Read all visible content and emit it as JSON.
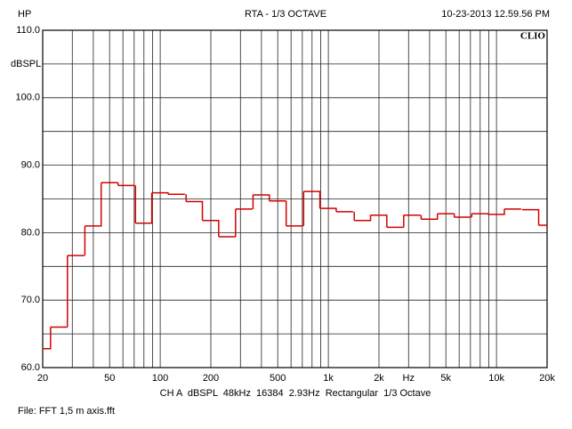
{
  "header": {
    "left": "HP",
    "center": "RTA - 1/3 OCTAVE",
    "right": "10-23-2013 12.59.56 PM"
  },
  "chart_data": {
    "type": "line",
    "drawstyle": "steps-mid",
    "brand": "CLIO",
    "ylabel": "dBSPL",
    "x": [
      20,
      25,
      31.5,
      40,
      50,
      63,
      80,
      100,
      125,
      160,
      200,
      250,
      315,
      400,
      500,
      630,
      800,
      1000,
      1250,
      1600,
      2000,
      2500,
      3150,
      4000,
      5000,
      6300,
      8000,
      10000,
      12500,
      16000,
      20000
    ],
    "series": [
      {
        "name": "CH A",
        "color": "#d40000",
        "values": [
          62.8,
          66.0,
          76.6,
          81.0,
          87.4,
          87.0,
          81.4,
          85.9,
          85.7,
          84.6,
          81.8,
          79.4,
          83.5,
          85.6,
          84.7,
          81.0,
          86.1,
          83.6,
          83.1,
          81.8,
          82.6,
          80.8,
          82.6,
          82.0,
          82.8,
          82.3,
          82.8,
          82.7,
          83.5,
          83.4,
          81.1
        ]
      }
    ],
    "xscale": "log",
    "xlim": [
      20,
      20000
    ],
    "xticks": [
      20,
      50,
      100,
      200,
      500,
      {
        "value": 1000,
        "label": "1k"
      },
      {
        "value": 2000,
        "label": "2k"
      },
      {
        "value": 3000,
        "label": "Hz"
      },
      {
        "value": 5000,
        "label": "5k"
      },
      {
        "value": 10000,
        "label": "10k"
      },
      {
        "value": 20000,
        "label": "20k"
      }
    ],
    "xminor": [
      30,
      40,
      60,
      70,
      80,
      90,
      300,
      400,
      600,
      700,
      800,
      900,
      4000,
      6000,
      7000,
      8000,
      9000
    ],
    "ylim": [
      60,
      110
    ],
    "yticks": [
      {
        "value": 60,
        "label": "60.0"
      },
      {
        "value": 70,
        "label": "70.0"
      },
      {
        "value": 80,
        "label": "80.0"
      },
      {
        "value": 90,
        "label": "90.0"
      },
      {
        "value": 100,
        "label": "100.0"
      },
      {
        "value": 110,
        "label": "110.0"
      }
    ],
    "yminor": [
      65,
      75,
      85,
      95,
      105
    ],
    "grid": true
  },
  "footer": {
    "settings": "CH A  dBSPL  48kHz  16384  2.93Hz  Rectangular  1/3 Octave",
    "file": "File: FFT 1,5 m axis.fft"
  }
}
